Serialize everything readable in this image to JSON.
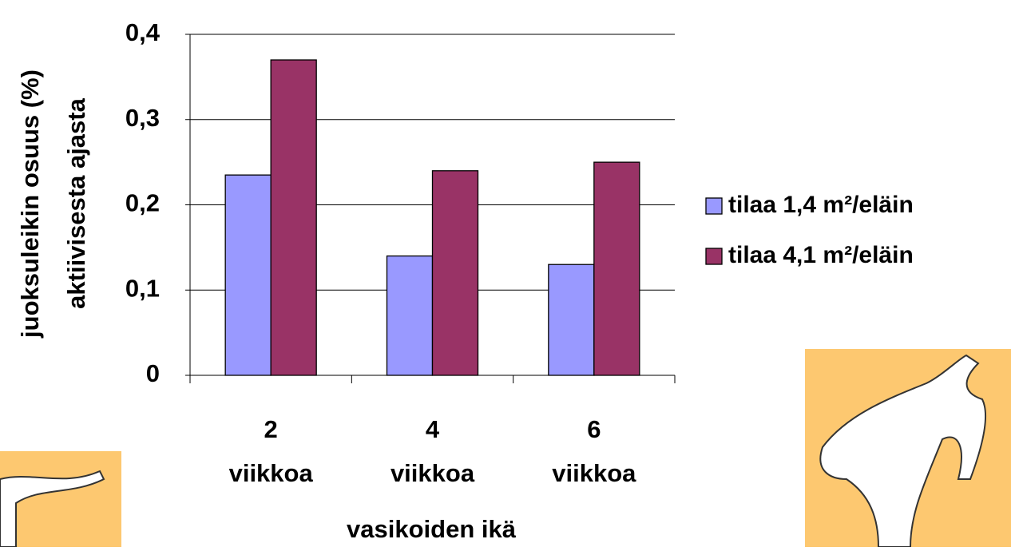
{
  "chart_data": {
    "type": "bar",
    "categories": [
      [
        "2",
        "viikkoa"
      ],
      [
        "4",
        "viikkoa"
      ],
      [
        "6",
        "viikkoa"
      ]
    ],
    "series": [
      {
        "name": "tilaa 1,4 m²/eläin",
        "color": "#9999ff",
        "values": [
          0.235,
          0.14,
          0.13
        ]
      },
      {
        "name": "tilaa 4,1 m²/eläin",
        "color": "#993366",
        "values": [
          0.37,
          0.24,
          0.25
        ]
      }
    ],
    "ylim": [
      0,
      0.4
    ],
    "yticks": [
      0,
      {
        "value": 0.1,
        "label": "0,1"
      },
      {
        "value": 0.2,
        "label": "0,2"
      },
      {
        "value": 0.3,
        "label": "0,3"
      },
      {
        "value": 0.4,
        "label": "0,4"
      }
    ],
    "grid": true,
    "xlabel": "vasikoiden ikä",
    "ylabel": [
      "juoksuleikin osuus  (%)",
      "aktiivisesta ajasta"
    ],
    "legend": "right"
  }
}
